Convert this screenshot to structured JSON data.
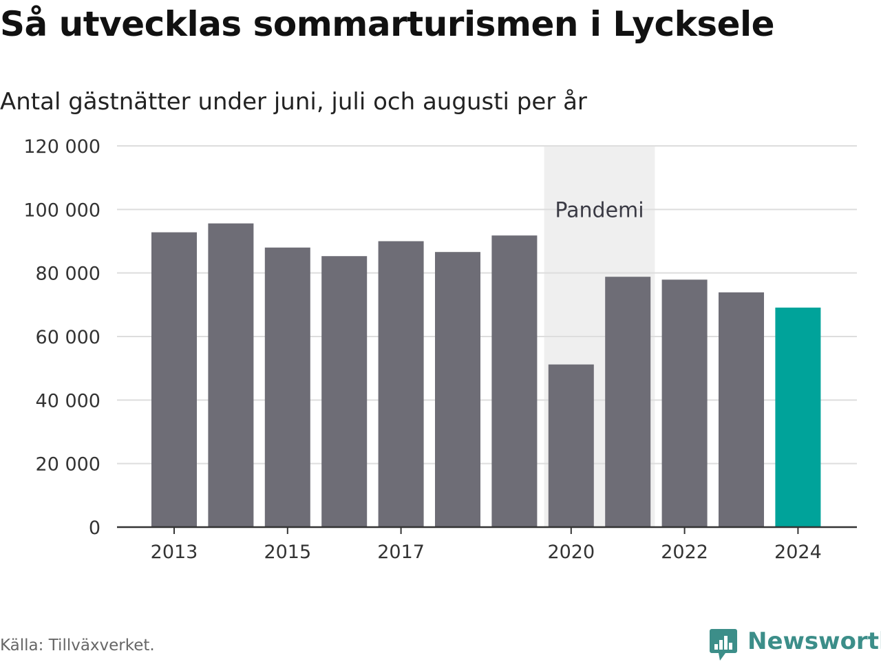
{
  "title": "Så utvecklas sommarturismen i Lycksele",
  "subtitle": "Antal gästnätter under juni, juli och augusti per år",
  "source": "Källa: Tillväxverket.",
  "brand": {
    "name": "Newsworthy",
    "icon": "newsworthy-logo-icon",
    "color": "#3c8e89"
  },
  "colors": {
    "bar": "#6e6d76",
    "highlight": "#00a39a",
    "band": "#efefef",
    "grid": "#dddddd"
  },
  "chart_data": {
    "type": "bar",
    "title": "Så utvecklas sommarturismen i Lycksele",
    "subtitle": "Antal gästnätter under juni, juli och augusti per år",
    "categories": [
      "2013",
      "2014",
      "2015",
      "2016",
      "2017",
      "2018",
      "2019",
      "2020",
      "2021",
      "2022",
      "2023",
      "2024"
    ],
    "values": [
      92800,
      95600,
      88000,
      85300,
      90000,
      86600,
      91800,
      51200,
      78800,
      77900,
      73900,
      69100
    ],
    "x_tick_labels": [
      "2013",
      "2015",
      "2017",
      "2020",
      "2022",
      "2024"
    ],
    "y_tick_labels": [
      "0",
      "20 000",
      "40 000",
      "60 000",
      "80 000",
      "100 000",
      "120 000"
    ],
    "y_ticks": [
      0,
      20000,
      40000,
      60000,
      80000,
      100000,
      120000
    ],
    "ylim": [
      0,
      120000
    ],
    "highlight_category": "2024",
    "annotation": {
      "label": "Pandemi",
      "from": "2020",
      "to": "2021"
    },
    "grid": true,
    "xlabel": "",
    "ylabel": ""
  }
}
